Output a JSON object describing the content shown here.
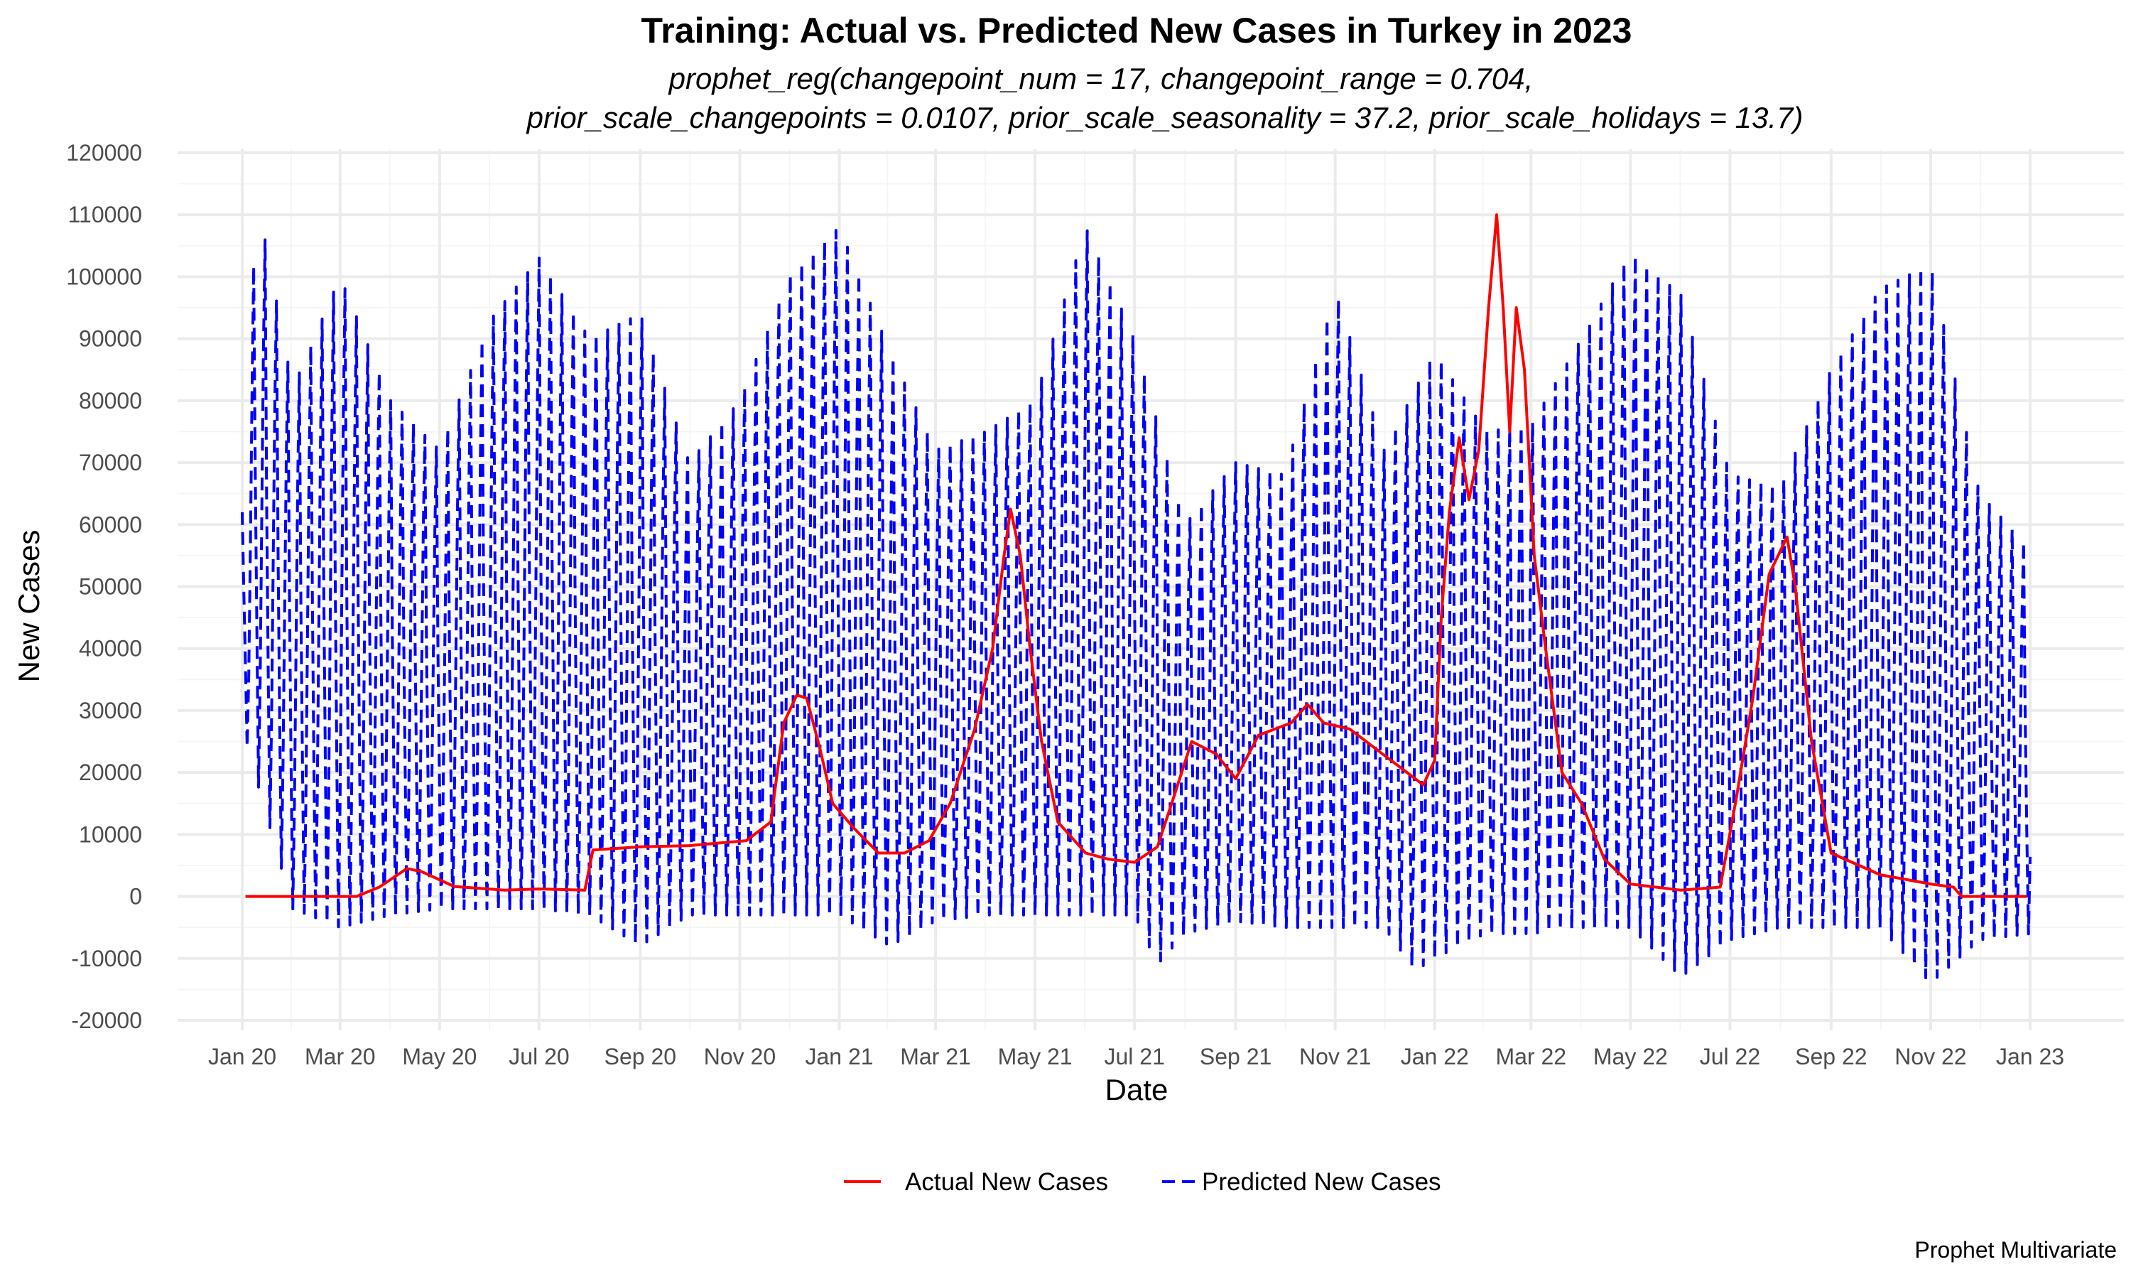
{
  "chart_data": {
    "type": "line",
    "title": "Training: Actual vs. Predicted New Cases in Turkey in 2023",
    "subtitle_lines": [
      "prophet_reg(changepoint_num = 17, changepoint_range = 0.704,",
      "prior_scale_changepoints = 0.0107, prior_scale_seasonality = 37.2, prior_scale_holidays = 13.7)"
    ],
    "xlabel": "Date",
    "ylabel": "New Cases",
    "caption": "Prophet Multivariate",
    "ylim": [
      -20000,
      120000
    ],
    "xlim": [
      "2020-01-01",
      "2023-01-01"
    ],
    "y_ticks": [
      -20000,
      -10000,
      0,
      10000,
      20000,
      30000,
      40000,
      50000,
      60000,
      70000,
      80000,
      90000,
      100000,
      110000,
      120000
    ],
    "y_tick_labels": [
      "-20000",
      "-10000",
      "0",
      "10000",
      "20000",
      "30000",
      "40000",
      "50000",
      "60000",
      "70000",
      "80000",
      "90000",
      "100000",
      "110000",
      "120000"
    ],
    "x_ticks": [
      {
        "date": "2020-01-01",
        "label": "Jan 20"
      },
      {
        "date": "2020-03-01",
        "label": "Mar 20"
      },
      {
        "date": "2020-05-01",
        "label": "May 20"
      },
      {
        "date": "2020-07-01",
        "label": "Jul 20"
      },
      {
        "date": "2020-09-01",
        "label": "Sep 20"
      },
      {
        "date": "2020-11-01",
        "label": "Nov 20"
      },
      {
        "date": "2021-01-01",
        "label": "Jan 21"
      },
      {
        "date": "2021-03-01",
        "label": "Mar 21"
      },
      {
        "date": "2021-05-01",
        "label": "May 21"
      },
      {
        "date": "2021-07-01",
        "label": "Jul 21"
      },
      {
        "date": "2021-09-01",
        "label": "Sep 21"
      },
      {
        "date": "2021-11-01",
        "label": "Nov 21"
      },
      {
        "date": "2022-01-01",
        "label": "Jan 22"
      },
      {
        "date": "2022-03-01",
        "label": "Mar 22"
      },
      {
        "date": "2022-05-01",
        "label": "May 22"
      },
      {
        "date": "2022-07-01",
        "label": "Jul 22"
      },
      {
        "date": "2022-09-01",
        "label": "Sep 22"
      },
      {
        "date": "2022-11-01",
        "label": "Nov 22"
      },
      {
        "date": "2023-01-01",
        "label": "Jan 23"
      }
    ],
    "grid": true,
    "legend_position": "bottom",
    "series": [
      {
        "name": "Actual New Cases",
        "color": "#ff0000",
        "dash": "solid",
        "points": [
          [
            "2020-01-03",
            0
          ],
          [
            "2020-02-15",
            0
          ],
          [
            "2020-03-11",
            0
          ],
          [
            "2020-03-25",
            1500
          ],
          [
            "2020-04-11",
            4500
          ],
          [
            "2020-04-20",
            4000
          ],
          [
            "2020-05-10",
            1600
          ],
          [
            "2020-06-10",
            1000
          ],
          [
            "2020-07-01",
            1200
          ],
          [
            "2020-07-29",
            1000
          ],
          [
            "2020-08-03",
            7500
          ],
          [
            "2020-09-01",
            8000
          ],
          [
            "2020-10-01",
            8200
          ],
          [
            "2020-11-05",
            9000
          ],
          [
            "2020-11-20",
            12000
          ],
          [
            "2020-11-28",
            28000
          ],
          [
            "2020-12-06",
            32500
          ],
          [
            "2020-12-12",
            32000
          ],
          [
            "2020-12-20",
            24000
          ],
          [
            "2020-12-28",
            15000
          ],
          [
            "2021-01-10",
            11000
          ],
          [
            "2021-01-25",
            7000
          ],
          [
            "2021-02-10",
            7000
          ],
          [
            "2021-02-25",
            9000
          ],
          [
            "2021-03-10",
            15000
          ],
          [
            "2021-03-25",
            27000
          ],
          [
            "2021-04-05",
            40000
          ],
          [
            "2021-04-12",
            55000
          ],
          [
            "2021-04-16",
            62500
          ],
          [
            "2021-04-22",
            55000
          ],
          [
            "2021-04-28",
            40000
          ],
          [
            "2021-05-05",
            25000
          ],
          [
            "2021-05-15",
            12000
          ],
          [
            "2021-06-01",
            7000
          ],
          [
            "2021-06-15",
            6000
          ],
          [
            "2021-07-01",
            5500
          ],
          [
            "2021-07-15",
            8000
          ],
          [
            "2021-07-25",
            16000
          ],
          [
            "2021-08-05",
            25000
          ],
          [
            "2021-08-20",
            23000
          ],
          [
            "2021-09-01",
            19000
          ],
          [
            "2021-09-15",
            26000
          ],
          [
            "2021-10-05",
            28000
          ],
          [
            "2021-10-15",
            31000
          ],
          [
            "2021-10-25",
            28000
          ],
          [
            "2021-11-10",
            27000
          ],
          [
            "2021-11-25",
            24000
          ],
          [
            "2021-12-10",
            21000
          ],
          [
            "2021-12-25",
            18000
          ],
          [
            "2022-01-01",
            22000
          ],
          [
            "2022-01-05",
            45000
          ],
          [
            "2022-01-10",
            62000
          ],
          [
            "2022-01-16",
            74000
          ],
          [
            "2022-01-22",
            64000
          ],
          [
            "2022-01-28",
            72000
          ],
          [
            "2022-02-03",
            95000
          ],
          [
            "2022-02-08",
            110000
          ],
          [
            "2022-02-12",
            95000
          ],
          [
            "2022-02-16",
            75000
          ],
          [
            "2022-02-20",
            95000
          ],
          [
            "2022-02-25",
            85000
          ],
          [
            "2022-03-03",
            55000
          ],
          [
            "2022-03-10",
            40000
          ],
          [
            "2022-03-20",
            20000
          ],
          [
            "2022-04-01",
            15000
          ],
          [
            "2022-04-15",
            6000
          ],
          [
            "2022-05-01",
            2000
          ],
          [
            "2022-06-01",
            1000
          ],
          [
            "2022-06-25",
            1500
          ],
          [
            "2022-07-05",
            16000
          ],
          [
            "2022-07-15",
            32000
          ],
          [
            "2022-07-25",
            52000
          ],
          [
            "2022-08-05",
            58000
          ],
          [
            "2022-08-10",
            50000
          ],
          [
            "2022-08-20",
            25000
          ],
          [
            "2022-09-01",
            7000
          ],
          [
            "2022-10-01",
            3500
          ],
          [
            "2022-11-01",
            2000
          ],
          [
            "2022-11-15",
            1500
          ],
          [
            "2022-11-20",
            0
          ],
          [
            "2022-12-30",
            0
          ]
        ]
      },
      {
        "name": "Predicted New Cases",
        "color": "#0000ff",
        "dash": "dashed",
        "period_days": 7,
        "envelope_upper": [
          [
            "2020-01-01",
            62000
          ],
          [
            "2020-01-10",
            113000
          ],
          [
            "2020-02-01",
            82000
          ],
          [
            "2020-03-01",
            100000
          ],
          [
            "2020-04-01",
            80000
          ],
          [
            "2020-05-01",
            72000
          ],
          [
            "2020-06-01",
            93000
          ],
          [
            "2020-07-01",
            103000
          ],
          [
            "2020-08-01",
            90000
          ],
          [
            "2020-09-01",
            94000
          ],
          [
            "2020-10-01",
            70000
          ],
          [
            "2020-11-01",
            80000
          ],
          [
            "2020-12-01",
            100000
          ],
          [
            "2021-01-01",
            108000
          ],
          [
            "2021-02-01",
            88000
          ],
          [
            "2021-03-01",
            72000
          ],
          [
            "2021-04-01",
            75000
          ],
          [
            "2021-05-01",
            80000
          ],
          [
            "2021-06-01",
            108000
          ],
          [
            "2021-07-01",
            90000
          ],
          [
            "2021-08-01",
            60000
          ],
          [
            "2021-09-01",
            70000
          ],
          [
            "2021-10-01",
            68000
          ],
          [
            "2021-11-01",
            98000
          ],
          [
            "2021-12-01",
            72000
          ],
          [
            "2022-01-01",
            88000
          ],
          [
            "2022-02-01",
            75000
          ],
          [
            "2022-03-01",
            76000
          ],
          [
            "2022-04-01",
            90000
          ],
          [
            "2022-05-01",
            104000
          ],
          [
            "2022-06-01",
            97000
          ],
          [
            "2022-07-01",
            68000
          ],
          [
            "2022-08-01",
            66000
          ],
          [
            "2022-09-01",
            85000
          ],
          [
            "2022-10-01",
            98000
          ],
          [
            "2022-11-01",
            102000
          ],
          [
            "2022-12-01",
            65000
          ],
          [
            "2023-01-01",
            56000
          ]
        ],
        "envelope_lower": [
          [
            "2020-01-01",
            27000
          ],
          [
            "2020-02-01",
            -2000
          ],
          [
            "2020-03-01",
            -5000
          ],
          [
            "2020-04-01",
            -3000
          ],
          [
            "2020-05-01",
            -2000
          ],
          [
            "2020-06-01",
            -2000
          ],
          [
            "2020-07-01",
            -2000
          ],
          [
            "2020-08-01",
            -3000
          ],
          [
            "2020-09-01",
            -8000
          ],
          [
            "2020-10-01",
            -3000
          ],
          [
            "2020-11-01",
            -3000
          ],
          [
            "2021-01-01",
            -3000
          ],
          [
            "2021-02-01",
            -8000
          ],
          [
            "2021-03-01",
            -4000
          ],
          [
            "2021-04-01",
            -3000
          ],
          [
            "2021-05-01",
            -3000
          ],
          [
            "2021-06-01",
            -3000
          ],
          [
            "2021-07-01",
            -3000
          ],
          [
            "2021-07-15",
            -11000
          ],
          [
            "2021-08-01",
            -6000
          ],
          [
            "2021-09-01",
            -4000
          ],
          [
            "2021-10-01",
            -5000
          ],
          [
            "2021-11-01",
            -5000
          ],
          [
            "2021-12-01",
            -5000
          ],
          [
            "2021-12-20",
            -12000
          ],
          [
            "2022-01-01",
            -10000
          ],
          [
            "2022-02-01",
            -6000
          ],
          [
            "2022-03-01",
            -6000
          ],
          [
            "2022-04-01",
            -5000
          ],
          [
            "2022-05-01",
            -5000
          ],
          [
            "2022-06-01",
            -13000
          ],
          [
            "2022-07-01",
            -7000
          ],
          [
            "2022-08-01",
            -5000
          ],
          [
            "2022-09-01",
            -5000
          ],
          [
            "2022-10-01",
            -5000
          ],
          [
            "2022-11-01",
            -14000
          ],
          [
            "2022-12-01",
            -7000
          ],
          [
            "2023-01-01",
            -6000
          ]
        ]
      }
    ]
  }
}
